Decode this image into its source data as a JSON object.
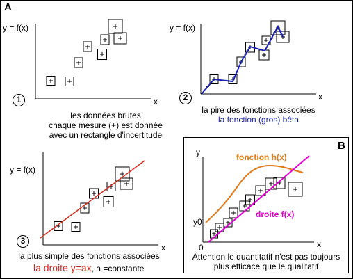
{
  "panel_a": {
    "letter": "A",
    "plot1": {
      "y_label": "y = f(x)",
      "x_label": "x",
      "number": "1",
      "caption_line1": "les données brutes",
      "caption_line2": "chaque mesure (+) est donnée",
      "caption_line3": "avec un rectangle d'incertitude"
    },
    "plot2": {
      "y_label": "y = f(x)",
      "x_label": "x",
      "number": "2",
      "caption_line1": "la pire des fonctions associées",
      "caption_line2": "la fonction (gros) bêta"
    },
    "plot3": {
      "y_label": "y = f(x)",
      "x_label": "x",
      "number": "3",
      "caption_line1": "la plus simple des fonctions associées",
      "caption_main": "la droite y=ax",
      "caption_suffix": ", a =constante"
    }
  },
  "panel_b": {
    "letter": "B",
    "y_label": "y",
    "x_label": "x",
    "y0_label": "y0",
    "origin_label": "0",
    "curve_h_label": "fonction h(x)",
    "line_f_label": "droite f(x)",
    "caption_line1": "Attention le quantitatif n'est pas toujours",
    "caption_line2": "plus efficace que le qualitatif"
  },
  "colors": {
    "beta_function": "#1a22b3",
    "linear_fit": "#d42a1c",
    "curve_h": "#e07a1a",
    "line_f": "#e000d0"
  }
}
